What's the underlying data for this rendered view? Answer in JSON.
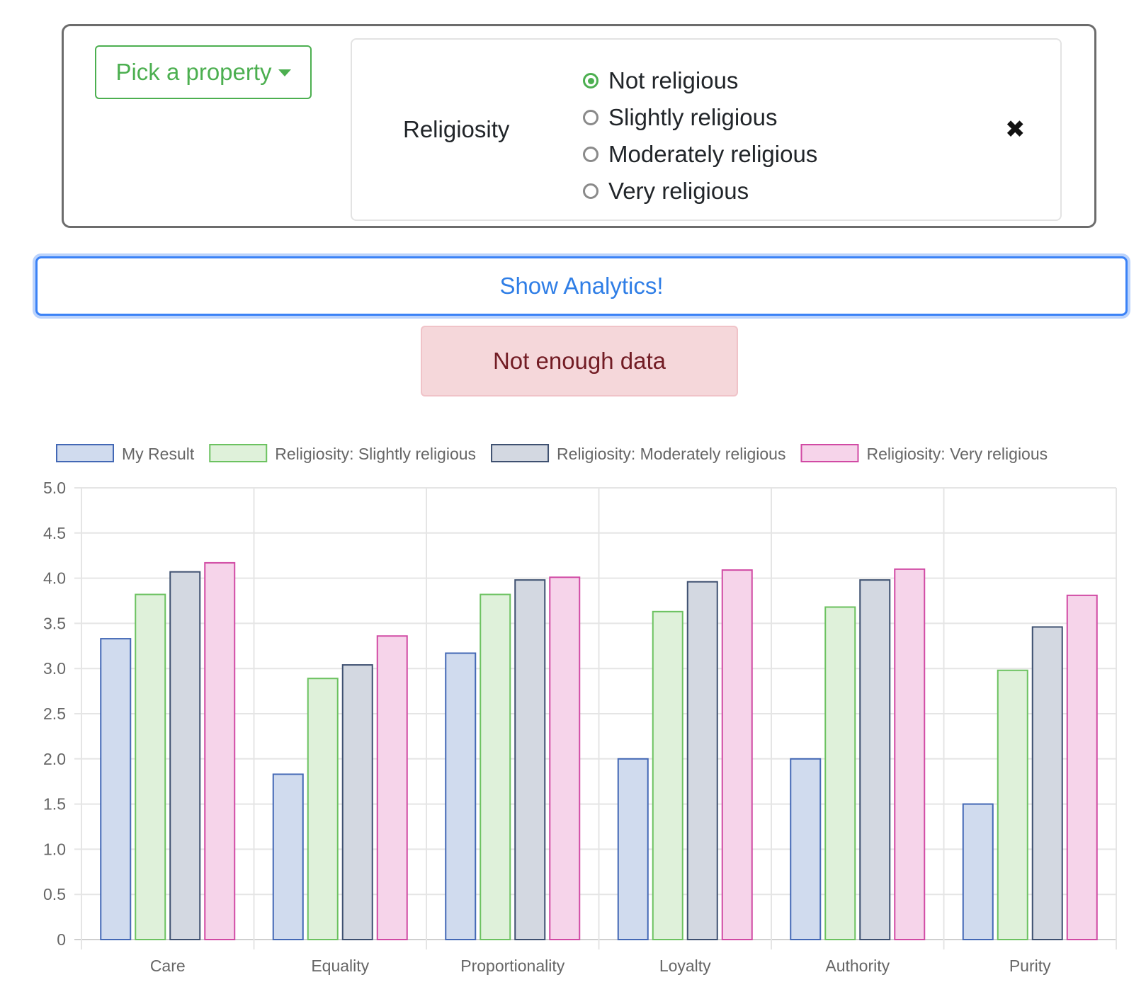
{
  "filter": {
    "pick_label": "Pick a property",
    "property_name": "Religiosity",
    "options": [
      {
        "label": "Not religious",
        "checked": true
      },
      {
        "label": "Slightly religious",
        "checked": false
      },
      {
        "label": "Moderately religious",
        "checked": false
      },
      {
        "label": "Very religious",
        "checked": false
      }
    ],
    "remove_glyph": "✖"
  },
  "show_button_label": "Show Analytics!",
  "alert_text": "Not enough data",
  "colors": {
    "pick_green": "#4caf50",
    "show_blue": "#2f7ee6",
    "alert_bg": "#f5d7da",
    "alert_text": "#721c24"
  },
  "chart_data": {
    "type": "bar",
    "categories": [
      "Care",
      "Equality",
      "Proportionality",
      "Loyalty",
      "Authority",
      "Purity"
    ],
    "series": [
      {
        "name": "My Result",
        "values": [
          3.33,
          1.83,
          3.17,
          2.0,
          2.0,
          1.5
        ],
        "fill": "#d0dbee",
        "stroke": "#4368b5"
      },
      {
        "name": "Religiosity: Slightly religious",
        "values": [
          3.82,
          2.89,
          3.82,
          3.63,
          3.68,
          2.98
        ],
        "fill": "#dff1da",
        "stroke": "#6cc260"
      },
      {
        "name": "Religiosity: Moderately religious",
        "values": [
          4.07,
          3.04,
          3.98,
          3.96,
          3.98,
          3.46
        ],
        "fill": "#d3d8e1",
        "stroke": "#3e5070"
      },
      {
        "name": "Religiosity: Very religious",
        "values": [
          4.17,
          3.36,
          4.01,
          4.09,
          4.1,
          3.81
        ],
        "fill": "#f6d4ea",
        "stroke": "#d14aa4"
      }
    ],
    "y_ticks": [
      "0",
      "0.5",
      "1.0",
      "1.5",
      "2.0",
      "2.5",
      "3.0",
      "3.5",
      "4.0",
      "4.5",
      "5.0"
    ],
    "ylim": [
      0,
      5
    ],
    "grid": true,
    "legend_position": "top"
  }
}
